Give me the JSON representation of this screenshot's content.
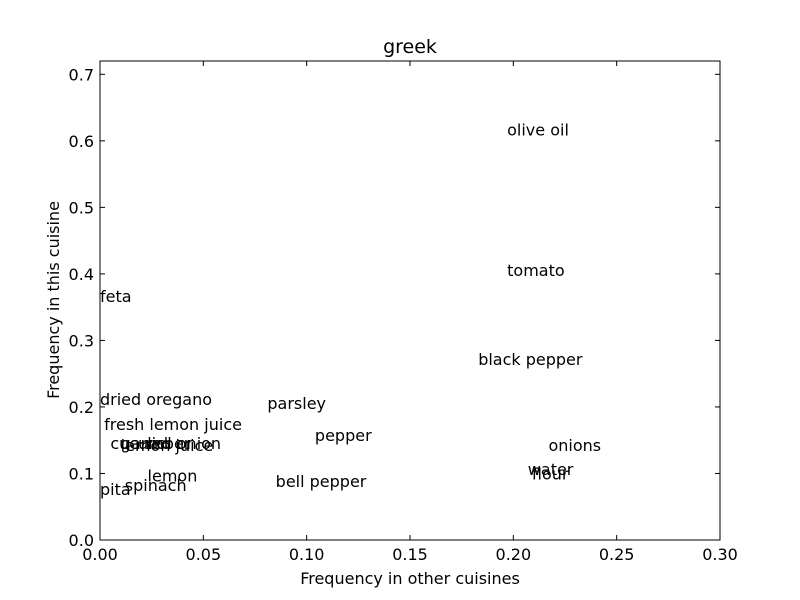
{
  "chart_data": {
    "type": "scatter",
    "title": "greek",
    "xlabel": "Frequency in other cuisines",
    "ylabel": "Frequency in this cuisine",
    "xlim": [
      0.0,
      0.3
    ],
    "ylim": [
      0.0,
      0.72
    ],
    "x_ticks": [
      0.0,
      0.05,
      0.1,
      0.15,
      0.2,
      0.25,
      0.3
    ],
    "x_tick_labels": [
      "0.00",
      "0.05",
      "0.10",
      "0.15",
      "0.20",
      "0.25",
      "0.30"
    ],
    "y_ticks": [
      0.0,
      0.1,
      0.2,
      0.3,
      0.4,
      0.5,
      0.6,
      0.7
    ],
    "y_tick_labels": [
      "0.0",
      "0.1",
      "0.2",
      "0.3",
      "0.4",
      "0.5",
      "0.6",
      "0.7"
    ],
    "grid": false,
    "points": [
      {
        "label": "olive oil",
        "x": 0.197,
        "y": 0.617
      },
      {
        "label": "tomato",
        "x": 0.197,
        "y": 0.406
      },
      {
        "label": "feta",
        "x": 0.0,
        "y": 0.367
      },
      {
        "label": "black pepper",
        "x": 0.183,
        "y": 0.272
      },
      {
        "label": "dried oregano",
        "x": 0.0,
        "y": 0.212
      },
      {
        "label": "parsley",
        "x": 0.081,
        "y": 0.206
      },
      {
        "label": "fresh lemon juice",
        "x": 0.002,
        "y": 0.174
      },
      {
        "label": "pepper",
        "x": 0.104,
        "y": 0.158
      },
      {
        "label": "cucumber",
        "x": 0.005,
        "y": 0.146
      },
      {
        "label": "garlic",
        "x": 0.01,
        "y": 0.146
      },
      {
        "label": "red onion",
        "x": 0.022,
        "y": 0.146
      },
      {
        "label": "lemon juice",
        "x": 0.01,
        "y": 0.143
      },
      {
        "label": "onions",
        "x": 0.217,
        "y": 0.143
      },
      {
        "label": "water",
        "x": 0.207,
        "y": 0.107
      },
      {
        "label": "flour",
        "x": 0.209,
        "y": 0.1
      },
      {
        "label": "lemon",
        "x": 0.023,
        "y": 0.097
      },
      {
        "label": "bell pepper",
        "x": 0.085,
        "y": 0.089
      },
      {
        "label": "spinach",
        "x": 0.012,
        "y": 0.083
      },
      {
        "label": "pita",
        "x": 0.0,
        "y": 0.077
      }
    ]
  }
}
